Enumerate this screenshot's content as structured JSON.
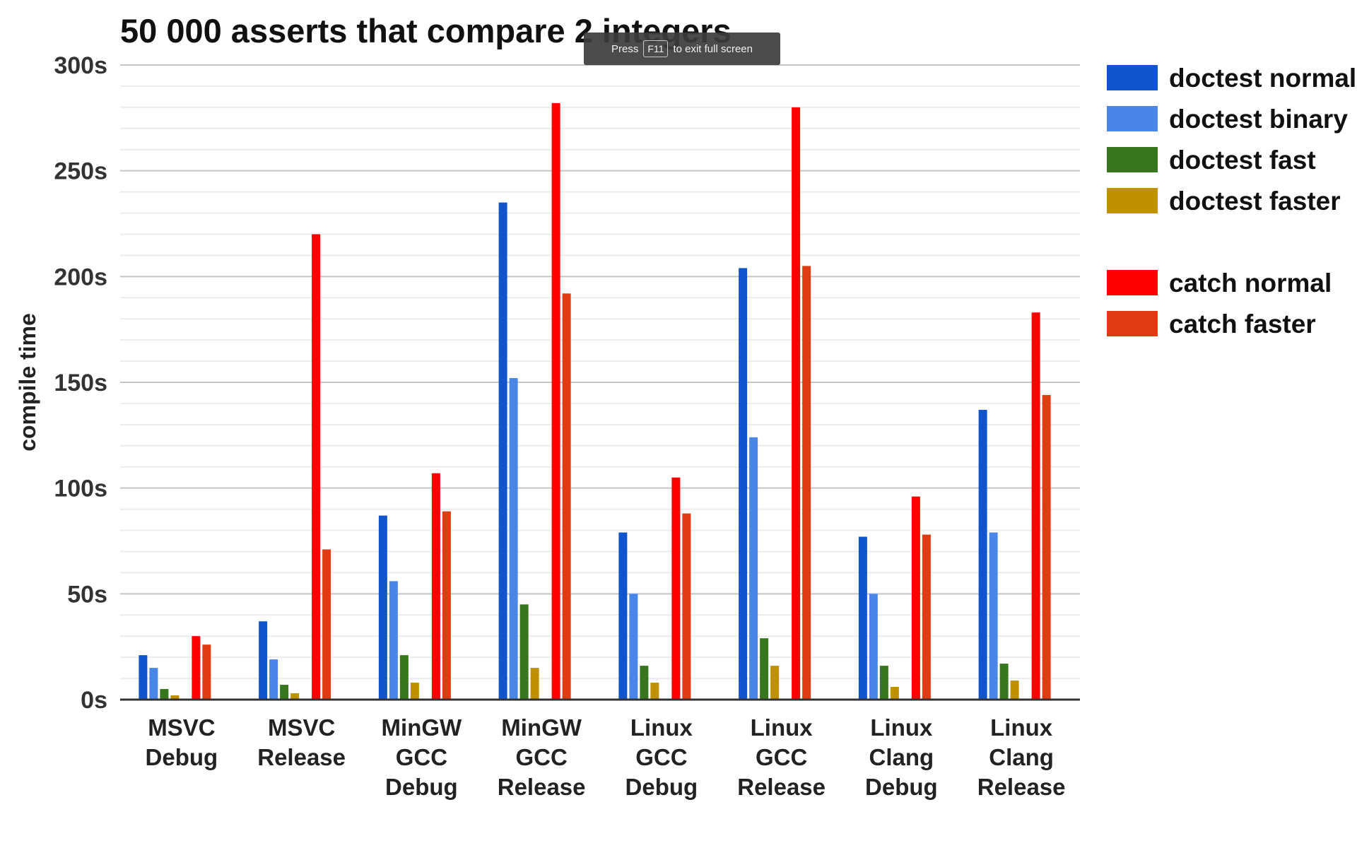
{
  "chart_data": {
    "type": "bar",
    "title": "50 000 asserts that compare 2 integers",
    "ylabel": "compile time",
    "xlabel": "",
    "ylim": [
      0,
      300
    ],
    "yticks": [
      0,
      50,
      100,
      150,
      200,
      250,
      300
    ],
    "ytick_labels": [
      "0s",
      "50s",
      "100s",
      "150s",
      "200s",
      "250s",
      "300s"
    ],
    "minor_grid_step": 10,
    "grid": true,
    "legend_position": "right",
    "categories": [
      [
        "MSVC",
        "Debug"
      ],
      [
        "MSVC",
        "Release"
      ],
      [
        "MinGW",
        "GCC",
        "Debug"
      ],
      [
        "MinGW",
        "GCC",
        "Release"
      ],
      [
        "Linux",
        "GCC",
        "Debug"
      ],
      [
        "Linux",
        "GCC",
        "Release"
      ],
      [
        "Linux",
        "Clang",
        "Debug"
      ],
      [
        "Linux",
        "Clang",
        "Release"
      ]
    ],
    "series": [
      {
        "name": "doctest normal",
        "color": "#1155cc",
        "values": [
          21,
          37,
          87,
          235,
          79,
          204,
          77,
          137
        ]
      },
      {
        "name": "doctest binary",
        "color": "#4a86e8",
        "values": [
          15,
          19,
          56,
          152,
          50,
          124,
          50,
          79
        ]
      },
      {
        "name": "doctest fast",
        "color": "#38761d",
        "values": [
          5,
          7,
          21,
          45,
          16,
          29,
          16,
          17
        ]
      },
      {
        "name": "doctest faster",
        "color": "#bf9000",
        "values": [
          2,
          3,
          8,
          15,
          8,
          16,
          6,
          9
        ]
      },
      {
        "name": "catch normal",
        "color": "#ff0000",
        "values": [
          30,
          220,
          107,
          282,
          105,
          280,
          96,
          183
        ]
      },
      {
        "name": "catch faster",
        "color": "#e03c14",
        "values": [
          26,
          71,
          89,
          192,
          88,
          205,
          78,
          144
        ]
      }
    ],
    "legend_gap_after_index": 3
  },
  "fullscreen_toast": {
    "prefix": "Press",
    "key": "F11",
    "suffix": "to exit full screen"
  }
}
